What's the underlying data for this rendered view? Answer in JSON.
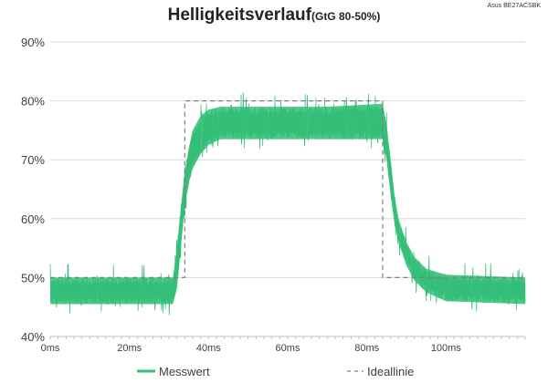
{
  "chart_data": {
    "type": "line",
    "title": "Helligkeitsverlauf",
    "subtitle": "(GtG 80-50%)",
    "corner_note": "Asus BE27ACSBK",
    "xlim": [
      0,
      120
    ],
    "ylim": [
      40,
      90
    ],
    "x_ticks": [
      {
        "v": 0,
        "label": "0ms"
      },
      {
        "v": 20,
        "label": "20ms"
      },
      {
        "v": 40,
        "label": "40ms"
      },
      {
        "v": 60,
        "label": "60ms"
      },
      {
        "v": 80,
        "label": "80ms"
      },
      {
        "v": 100,
        "label": "100ms"
      }
    ],
    "y_ticks": [
      {
        "v": 40,
        "label": "40%"
      },
      {
        "v": 50,
        "label": "50%"
      },
      {
        "v": 60,
        "label": "60%"
      },
      {
        "v": 70,
        "label": "70%"
      },
      {
        "v": 80,
        "label": "80%"
      },
      {
        "v": 90,
        "label": "90%"
      }
    ],
    "grid": "horizontal",
    "legend_position": "bottom",
    "series": [
      {
        "name": "Messwert",
        "color": "#33bf77",
        "style": "solid",
        "band": [
          {
            "x": 0,
            "lo": 45.5,
            "hi": 50
          },
          {
            "x": 31,
            "lo": 45.5,
            "hi": 50
          },
          {
            "x": 32,
            "lo": 48,
            "hi": 55
          },
          {
            "x": 33,
            "lo": 55,
            "hi": 62
          },
          {
            "x": 34,
            "lo": 62,
            "hi": 68
          },
          {
            "x": 35,
            "lo": 66,
            "hi": 72
          },
          {
            "x": 36,
            "lo": 68.5,
            "hi": 75
          },
          {
            "x": 38,
            "lo": 71,
            "hi": 77.5
          },
          {
            "x": 40,
            "lo": 72.5,
            "hi": 78.5
          },
          {
            "x": 43,
            "lo": 73.5,
            "hi": 79
          },
          {
            "x": 50,
            "lo": 73.5,
            "hi": 79
          },
          {
            "x": 70,
            "lo": 73.5,
            "hi": 79
          },
          {
            "x": 84,
            "lo": 73.5,
            "hi": 79.5
          },
          {
            "x": 85,
            "lo": 70,
            "hi": 76
          },
          {
            "x": 86,
            "lo": 64,
            "hi": 70
          },
          {
            "x": 87,
            "lo": 59,
            "hi": 64
          },
          {
            "x": 88,
            "lo": 56,
            "hi": 60
          },
          {
            "x": 90,
            "lo": 52,
            "hi": 56
          },
          {
            "x": 92,
            "lo": 49.5,
            "hi": 53.5
          },
          {
            "x": 95,
            "lo": 47.5,
            "hi": 51.5
          },
          {
            "x": 100,
            "lo": 46,
            "hi": 50.5
          },
          {
            "x": 120,
            "lo": 45.5,
            "hi": 50
          }
        ]
      },
      {
        "name": "Ideallinie",
        "color": "#7f7f7f",
        "style": "dashed",
        "points": [
          [
            0,
            50
          ],
          [
            34,
            50
          ],
          [
            34,
            80
          ],
          [
            84,
            80
          ],
          [
            84,
            50
          ],
          [
            120,
            50
          ]
        ]
      }
    ]
  }
}
